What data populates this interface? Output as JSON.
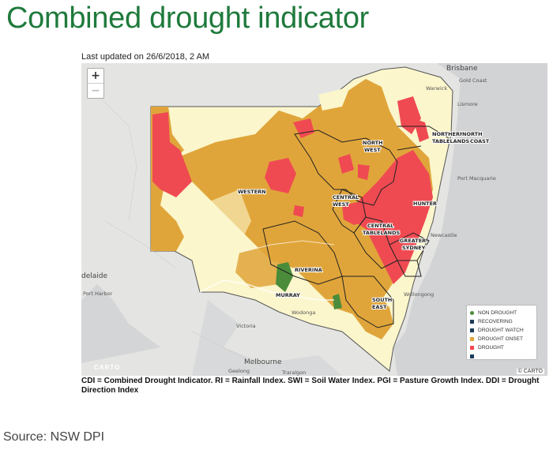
{
  "title": "Combined drought indicator",
  "updated": "Last updated on 26/6/2018, 2 AM",
  "zoom": {
    "in": "+",
    "out": "−"
  },
  "regions": [
    "WESTERN",
    "NORTH",
    "WEST",
    "NORTHERN",
    "NORTH",
    "TABLELANDS",
    "COAST",
    "CENTRAL",
    "WEST",
    "HUNTER",
    "CENTRAL",
    "TABLELANDS",
    "GREATER",
    "SYDNEY",
    "RIVERINA",
    "MURRAY",
    "SOUTH",
    "EAST"
  ],
  "places": [
    "Brisbane",
    "Gold Coast",
    "Warwick",
    "Lismore",
    "Port Macquarie",
    "Newcastle",
    "Wollongong",
    "Victoria",
    "Melbourne",
    "Geelong",
    "Traralgon",
    "Wodonga",
    "delaide",
    "Port Harbor"
  ],
  "legend": [
    {
      "label": "NON DROUGHT",
      "color": "#fbf6cc"
    },
    {
      "label": "RECOVERING",
      "color": "#4a8c3a"
    },
    {
      "label": "DROUGHT WATCH",
      "color": "#1d3d5c"
    },
    {
      "label": "DROUGHT ONSET",
      "color": "#e0a53a"
    },
    {
      "label": "DROUGHT",
      "color": "#ef4a52"
    },
    {
      "label": "",
      "color": "#1d3d5c"
    }
  ],
  "attribution": "© CARTO",
  "carto_logo": "CARTO",
  "caption": "CDI = Combined Drought Indicator. RI = Rainfall Index. SWI = Soil Water Index. PGI = Pasture Growth Index. DDI = Drought Direction Index",
  "source": "Source: NSW DPI"
}
